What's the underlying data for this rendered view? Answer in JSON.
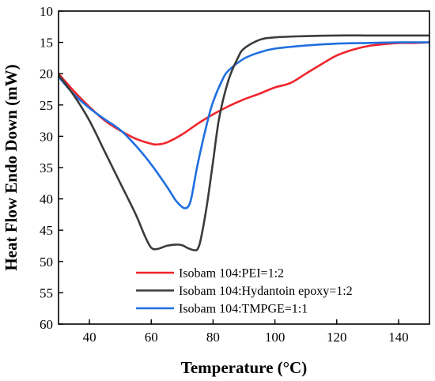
{
  "chart_data": {
    "type": "line",
    "title": "",
    "xlabel": "Temperature (°C)",
    "ylabel": "Heat Flow Endo Down (mW)",
    "xlim": [
      30,
      150
    ],
    "ylim": [
      60,
      10
    ],
    "y_inverted": true,
    "x_ticks": [
      40,
      60,
      80,
      100,
      120,
      140
    ],
    "y_ticks": [
      10,
      15,
      20,
      25,
      30,
      35,
      40,
      45,
      50,
      55,
      60
    ],
    "grid": false,
    "legend_position": "bottom-left",
    "series": [
      {
        "name": "Isobam 104:PEI=1:2",
        "color": "#f0242b",
        "x": [
          30,
          35,
          40,
          45,
          50,
          55,
          60,
          62,
          65,
          70,
          75,
          80,
          85,
          90,
          95,
          100,
          105,
          110,
          115,
          120,
          125,
          130,
          135,
          140,
          145,
          150
        ],
        "y": [
          20,
          22.8,
          25.3,
          27.5,
          29.1,
          30.4,
          31.2,
          31.3,
          31,
          29.7,
          28,
          26.5,
          25.2,
          24.1,
          23.2,
          22.2,
          21.5,
          20,
          18.5,
          17.1,
          16.2,
          15.6,
          15.3,
          15.1,
          15.1,
          15
        ]
      },
      {
        "name": "Isobam 104:Hydantoin epoxy=1:2",
        "color": "#3b3b3b",
        "x": [
          30,
          35,
          40,
          45,
          50,
          55,
          58,
          60,
          62,
          65,
          68,
          70,
          72,
          74,
          75,
          76,
          78,
          80,
          82,
          85,
          88,
          90,
          95,
          100,
          110,
          120,
          130,
          140,
          150
        ],
        "y": [
          20.2,
          23.5,
          27.5,
          32.5,
          37.5,
          42.5,
          46,
          47.8,
          48,
          47.5,
          47.3,
          47.4,
          47.9,
          48.2,
          48,
          46.5,
          41,
          34,
          27,
          21,
          17.5,
          16,
          14.6,
          14.2,
          14,
          13.9,
          13.9,
          13.9,
          13.9
        ]
      },
      {
        "name": "Isobam 104:TMPGE=1:1",
        "color": "#1f6fe0",
        "x": [
          30,
          35,
          40,
          45,
          50,
          55,
          60,
          65,
          68,
          70,
          71,
          72,
          73,
          75,
          78,
          80,
          83,
          85,
          90,
          95,
          100,
          110,
          120,
          130,
          140,
          150
        ],
        "y": [
          20.5,
          23.3,
          25.5,
          27.3,
          29,
          31.5,
          34.5,
          38,
          40.3,
          41.3,
          41.5,
          41.2,
          39.8,
          34.5,
          28,
          24.5,
          21,
          19.5,
          17.6,
          16.6,
          16,
          15.5,
          15.2,
          15.1,
          15,
          15
        ]
      }
    ]
  }
}
